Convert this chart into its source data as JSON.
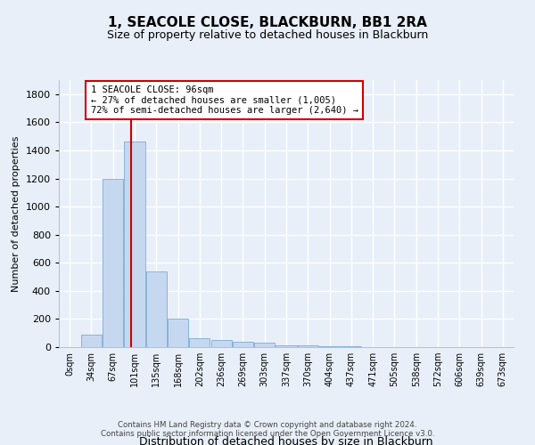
{
  "title": "1, SEACOLE CLOSE, BLACKBURN, BB1 2RA",
  "subtitle": "Size of property relative to detached houses in Blackburn",
  "xlabel": "Distribution of detached houses by size in Blackburn",
  "ylabel": "Number of detached properties",
  "bar_color": "#c5d8f0",
  "bar_edge_color": "#7aadd4",
  "categories": [
    "0sqm",
    "34sqm",
    "67sqm",
    "101sqm",
    "135sqm",
    "168sqm",
    "202sqm",
    "236sqm",
    "269sqm",
    "303sqm",
    "337sqm",
    "370sqm",
    "404sqm",
    "437sqm",
    "471sqm",
    "505sqm",
    "538sqm",
    "572sqm",
    "606sqm",
    "639sqm",
    "673sqm"
  ],
  "values": [
    0,
    90,
    1200,
    1460,
    540,
    205,
    65,
    50,
    40,
    30,
    15,
    10,
    5,
    5,
    0,
    0,
    0,
    0,
    0,
    0,
    0
  ],
  "vline_x": 2.85,
  "vline_color": "#cc0000",
  "annotation_text": "1 SEACOLE CLOSE: 96sqm\n← 27% of detached houses are smaller (1,005)\n72% of semi-detached houses are larger (2,640) →",
  "annotation_box_color": "#ffffff",
  "annotation_box_edge": "#cc0000",
  "ylim": [
    0,
    1900
  ],
  "yticks": [
    0,
    200,
    400,
    600,
    800,
    1000,
    1200,
    1400,
    1600,
    1800
  ],
  "footer": "Contains HM Land Registry data © Crown copyright and database right 2024.\nContains public sector information licensed under the Open Government Licence v3.0.",
  "background_color": "#e8eff8",
  "grid_color": "#ffffff",
  "title_fontsize": 11,
  "subtitle_fontsize": 9,
  "ylabel_fontsize": 8,
  "xlabel_fontsize": 9,
  "tick_fontsize": 8,
  "xtick_fontsize": 7
}
